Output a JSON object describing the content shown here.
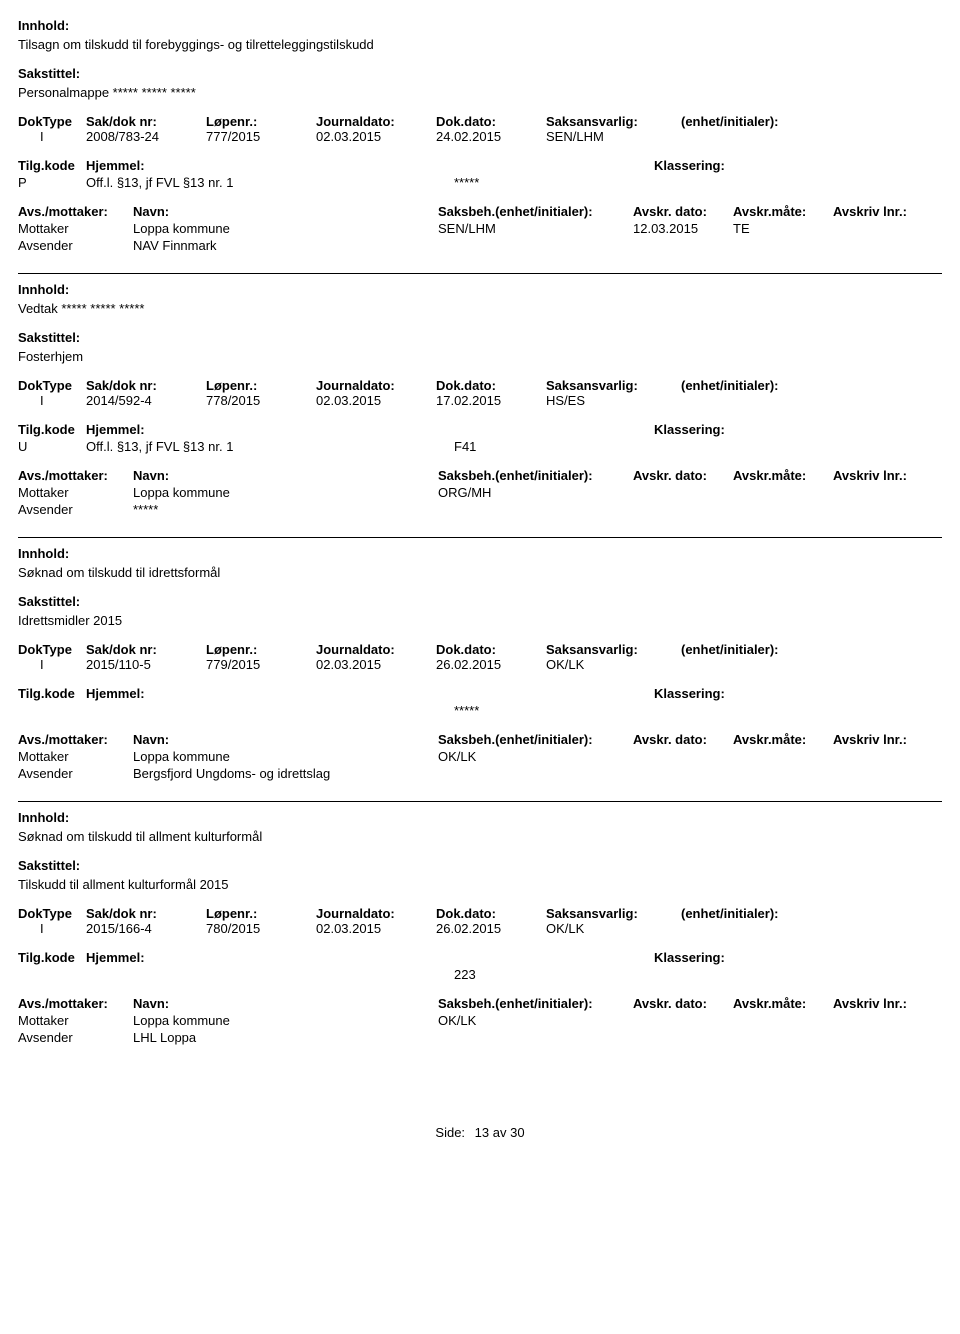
{
  "labels": {
    "innhold": "Innhold:",
    "sakstittel": "Sakstittel:",
    "doktype": "DokType",
    "sakdok": "Sak/dok nr:",
    "lopenr": "Løpenr.:",
    "journaldato": "Journaldato:",
    "dokdato": "Dok.dato:",
    "saksansvarlig": "Saksansvarlig:",
    "enhet": "(enhet/initialer):",
    "tilgkode": "Tilg.kode",
    "hjemmel": "Hjemmel:",
    "klassering": "Klassering:",
    "avsmottaker": "Avs./mottaker:",
    "navn": "Navn:",
    "saksbeh": "Saksbeh.(enhet/initialer):",
    "avskrdato": "Avskr. dato:",
    "avskrmate": "Avskr.måte:",
    "avskrivlnr": "Avskriv lnr.:",
    "mottaker": "Mottaker",
    "avsender": "Avsender",
    "side": "Side:",
    "av": "av"
  },
  "footer": {
    "page": "13",
    "total": "30"
  },
  "entries": [
    {
      "innhold": "Tilsagn om tilskudd til forebyggings- og tilretteleggingstilskudd",
      "sakstittel": "Personalmappe ***** ***** *****",
      "doktype": "I",
      "sakdok": "2008/783-24",
      "lopenr": "777/2015",
      "journaldato": "02.03.2015",
      "dokdato": "24.02.2015",
      "saksansvarlig": "SEN/LHM",
      "tilgkode": "P",
      "hjemmel": "Off.l. §13, jf FVL §13 nr. 1",
      "klassering": "*****",
      "parties": [
        {
          "role": "Mottaker",
          "name": "Loppa kommune",
          "saksbeh": "SEN/LHM",
          "date": "12.03.2015",
          "mate": "TE"
        },
        {
          "role": "Avsender",
          "name": "NAV Finnmark",
          "saksbeh": "",
          "date": "",
          "mate": ""
        }
      ]
    },
    {
      "innhold": "Vedtak ***** ***** *****",
      "sakstittel": "Fosterhjem",
      "doktype": "I",
      "sakdok": "2014/592-4",
      "lopenr": "778/2015",
      "journaldato": "02.03.2015",
      "dokdato": "17.02.2015",
      "saksansvarlig": "HS/ES",
      "tilgkode": "U",
      "hjemmel": "Off.l. §13, jf FVL §13 nr. 1",
      "klassering": "F41",
      "parties": [
        {
          "role": "Mottaker",
          "name": "Loppa kommune",
          "saksbeh": "ORG/MH",
          "date": "",
          "mate": ""
        },
        {
          "role": "Avsender",
          "name": "*****",
          "saksbeh": "",
          "date": "",
          "mate": ""
        }
      ]
    },
    {
      "innhold": "Søknad om tilskudd til idrettsformål",
      "sakstittel": "Idrettsmidler 2015",
      "doktype": "I",
      "sakdok": "2015/110-5",
      "lopenr": "779/2015",
      "journaldato": "02.03.2015",
      "dokdato": "26.02.2015",
      "saksansvarlig": "OK/LK",
      "tilgkode": "",
      "hjemmel": "",
      "klassering": "*****",
      "parties": [
        {
          "role": "Mottaker",
          "name": "Loppa kommune",
          "saksbeh": "OK/LK",
          "date": "",
          "mate": ""
        },
        {
          "role": "Avsender",
          "name": "Bergsfjord Ungdoms- og idrettslag",
          "saksbeh": "",
          "date": "",
          "mate": ""
        }
      ]
    },
    {
      "innhold": "Søknad om tilskudd til allment kulturformål",
      "sakstittel": "Tilskudd til allment kulturformål 2015",
      "doktype": "I",
      "sakdok": "2015/166-4",
      "lopenr": "780/2015",
      "journaldato": "02.03.2015",
      "dokdato": "26.02.2015",
      "saksansvarlig": "OK/LK",
      "tilgkode": "",
      "hjemmel": "",
      "klassering": "223",
      "parties": [
        {
          "role": "Mottaker",
          "name": "Loppa kommune",
          "saksbeh": "OK/LK",
          "date": "",
          "mate": ""
        },
        {
          "role": "Avsender",
          "name": "LHL Loppa",
          "saksbeh": "",
          "date": "",
          "mate": ""
        }
      ]
    }
  ]
}
